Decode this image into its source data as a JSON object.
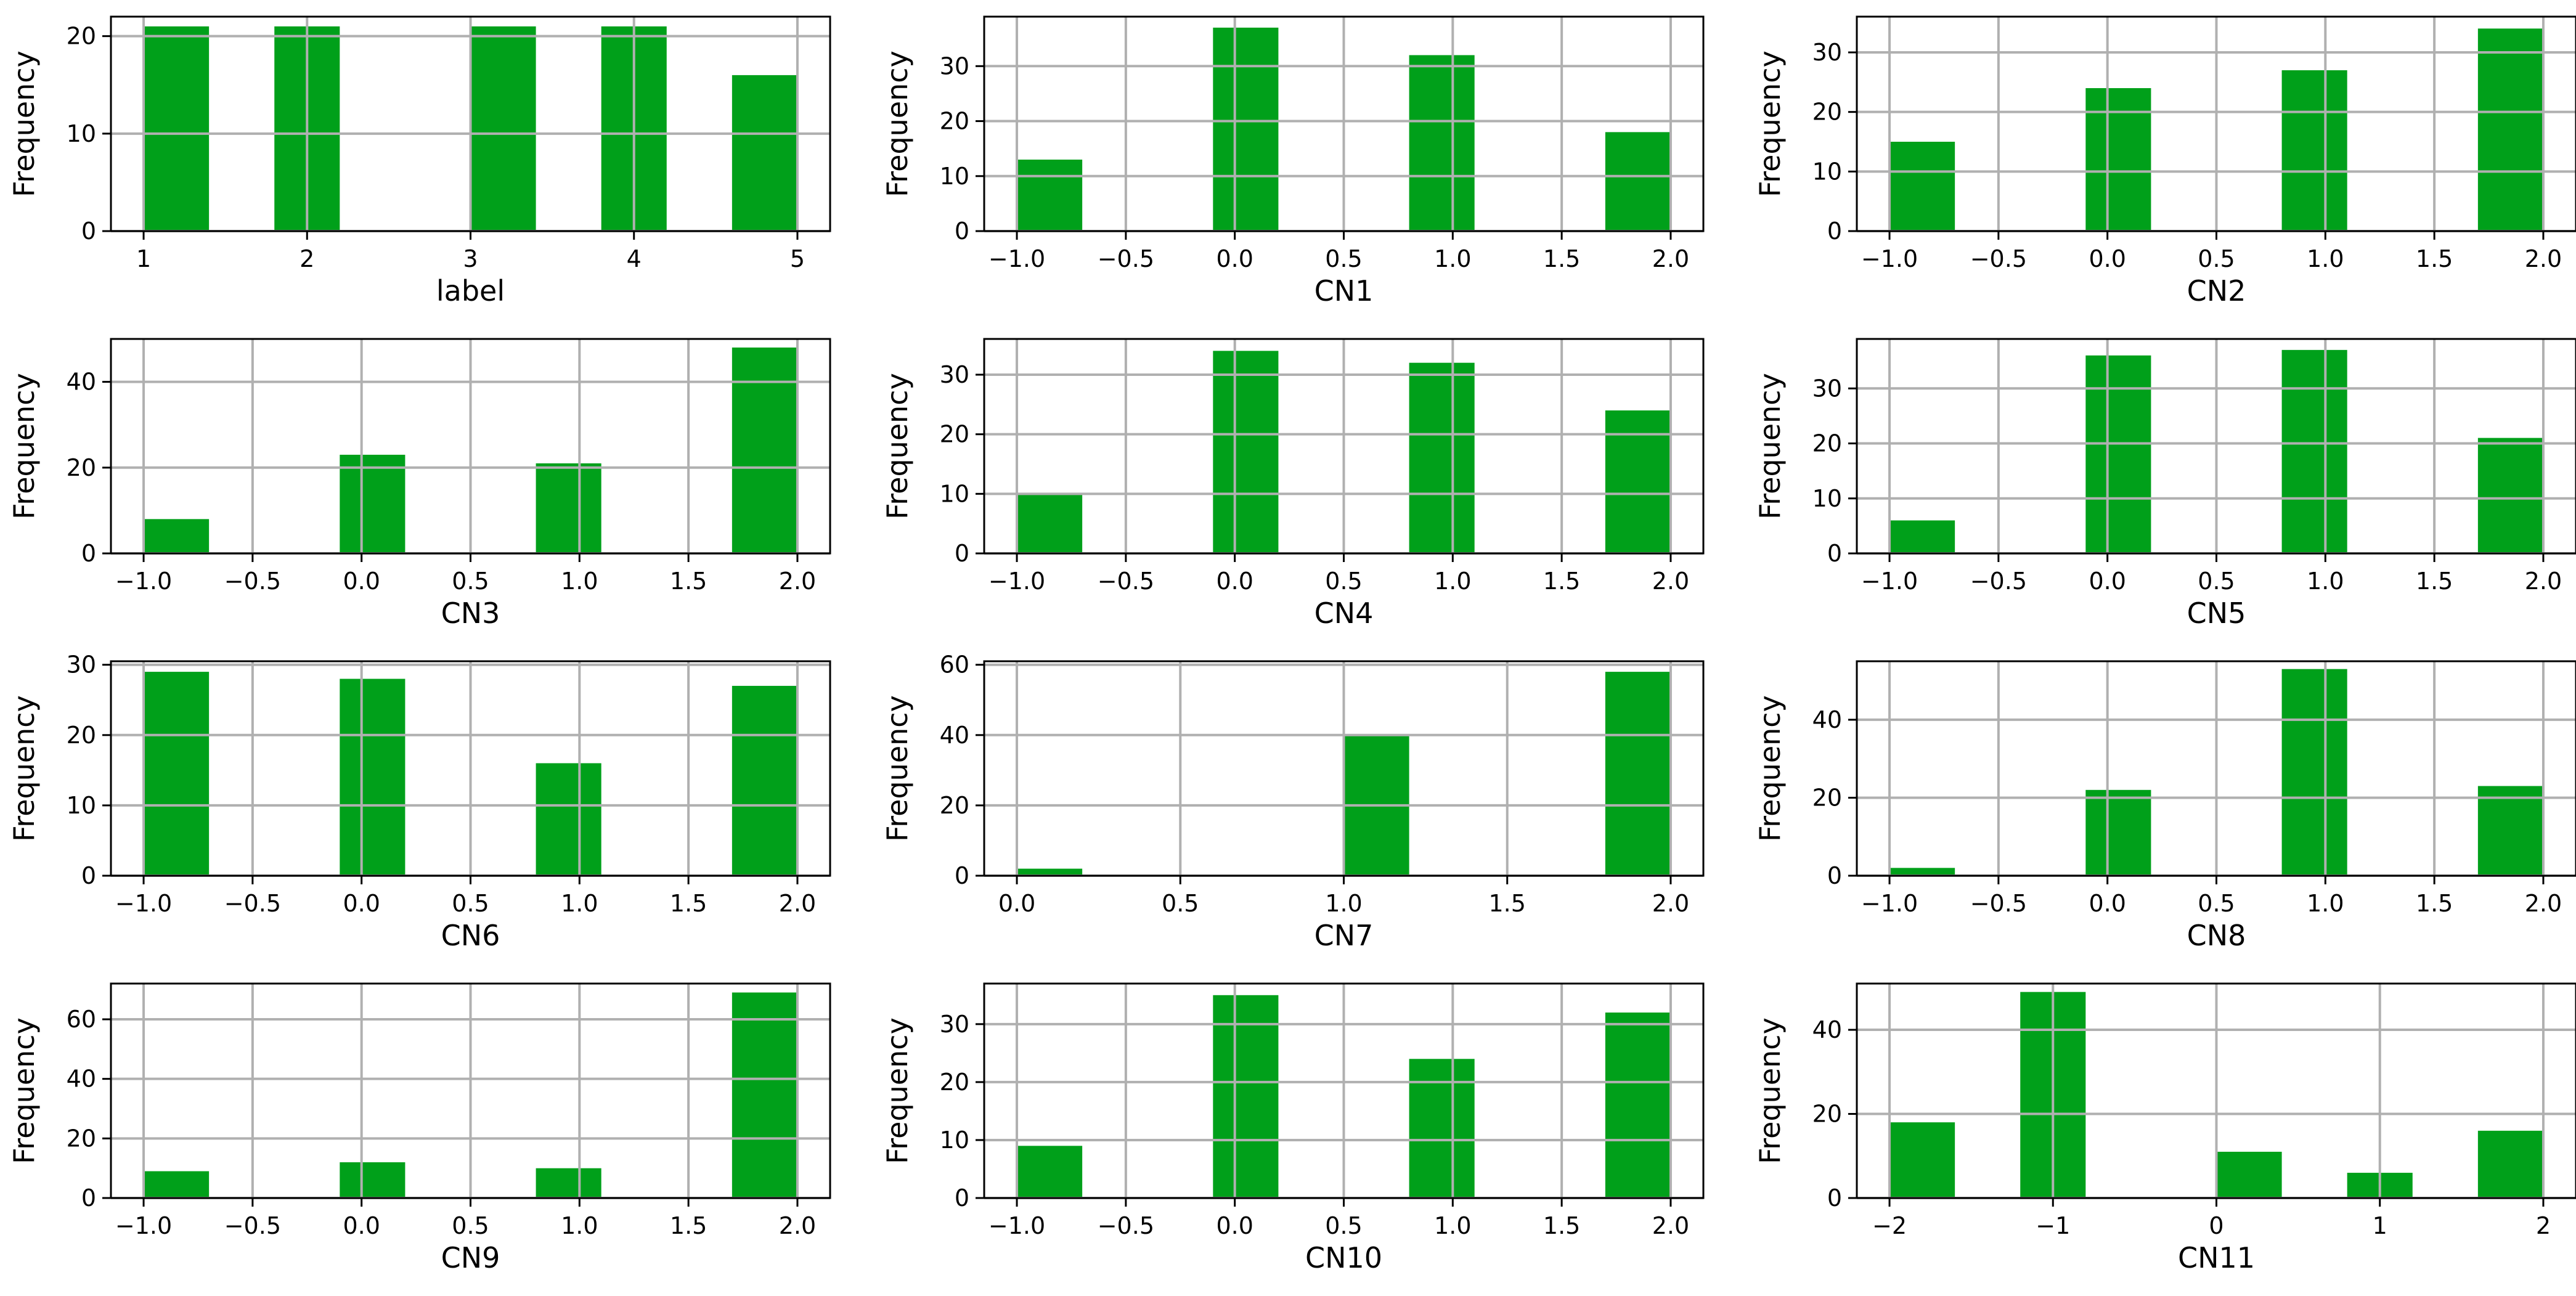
{
  "figure": {
    "background": "#ffffff",
    "bar_color": "#00a01a",
    "grid_color": "#b0b0b0"
  },
  "chart_data": [
    {
      "type": "bar",
      "title": "",
      "xlabel": "label",
      "ylabel": "Frequency",
      "xlim": [
        0.8,
        5.2
      ],
      "ylim": [
        0,
        22
      ],
      "xticks": [
        1,
        2,
        3,
        4,
        5
      ],
      "xtick_labels": [
        "1",
        "2",
        "3",
        "4",
        "5"
      ],
      "yticks": [
        0,
        10,
        20
      ],
      "ytick_labels": [
        "0",
        "10",
        "20"
      ],
      "bars": [
        {
          "x0": 1.0,
          "x1": 1.4,
          "value": 21
        },
        {
          "x0": 1.8,
          "x1": 2.2,
          "value": 21
        },
        {
          "x0": 3.0,
          "x1": 3.4,
          "value": 21
        },
        {
          "x0": 3.8,
          "x1": 4.2,
          "value": 21
        },
        {
          "x0": 4.6,
          "x1": 5.0,
          "value": 16
        }
      ]
    },
    {
      "type": "bar",
      "title": "",
      "xlabel": "CN1",
      "ylabel": "Frequency",
      "xlim": [
        -1.15,
        2.15
      ],
      "ylim": [
        0,
        39
      ],
      "xticks": [
        -1.0,
        -0.5,
        0.0,
        0.5,
        1.0,
        1.5,
        2.0
      ],
      "xtick_labels": [
        "−1.0",
        "−0.5",
        "0.0",
        "0.5",
        "1.0",
        "1.5",
        "2.0"
      ],
      "yticks": [
        0,
        10,
        20,
        30
      ],
      "ytick_labels": [
        "0",
        "10",
        "20",
        "30"
      ],
      "bars": [
        {
          "x0": -1.0,
          "x1": -0.7,
          "value": 13
        },
        {
          "x0": -0.1,
          "x1": 0.2,
          "value": 37
        },
        {
          "x0": 0.8,
          "x1": 1.1,
          "value": 32
        },
        {
          "x0": 1.7,
          "x1": 2.0,
          "value": 18
        }
      ]
    },
    {
      "type": "bar",
      "title": "",
      "xlabel": "CN2",
      "ylabel": "Frequency",
      "xlim": [
        -1.15,
        2.15
      ],
      "ylim": [
        0,
        36
      ],
      "xticks": [
        -1.0,
        -0.5,
        0.0,
        0.5,
        1.0,
        1.5,
        2.0
      ],
      "xtick_labels": [
        "−1.0",
        "−0.5",
        "0.0",
        "0.5",
        "1.0",
        "1.5",
        "2.0"
      ],
      "yticks": [
        0,
        10,
        20,
        30
      ],
      "ytick_labels": [
        "0",
        "10",
        "20",
        "30"
      ],
      "bars": [
        {
          "x0": -1.0,
          "x1": -0.7,
          "value": 15
        },
        {
          "x0": -0.1,
          "x1": 0.2,
          "value": 24
        },
        {
          "x0": 0.8,
          "x1": 1.1,
          "value": 27
        },
        {
          "x0": 1.7,
          "x1": 2.0,
          "value": 34
        }
      ]
    },
    {
      "type": "bar",
      "title": "",
      "xlabel": "CN3",
      "ylabel": "Frequency",
      "xlim": [
        -1.15,
        2.15
      ],
      "ylim": [
        0,
        50
      ],
      "xticks": [
        -1.0,
        -0.5,
        0.0,
        0.5,
        1.0,
        1.5,
        2.0
      ],
      "xtick_labels": [
        "−1.0",
        "−0.5",
        "0.0",
        "0.5",
        "1.0",
        "1.5",
        "2.0"
      ],
      "yticks": [
        0,
        20,
        40
      ],
      "ytick_labels": [
        "0",
        "20",
        "40"
      ],
      "bars": [
        {
          "x0": -1.0,
          "x1": -0.7,
          "value": 8
        },
        {
          "x0": -0.1,
          "x1": 0.2,
          "value": 23
        },
        {
          "x0": 0.8,
          "x1": 1.1,
          "value": 21
        },
        {
          "x0": 1.7,
          "x1": 2.0,
          "value": 48
        }
      ]
    },
    {
      "type": "bar",
      "title": "",
      "xlabel": "CN4",
      "ylabel": "Frequency",
      "xlim": [
        -1.15,
        2.15
      ],
      "ylim": [
        0,
        36
      ],
      "xticks": [
        -1.0,
        -0.5,
        0.0,
        0.5,
        1.0,
        1.5,
        2.0
      ],
      "xtick_labels": [
        "−1.0",
        "−0.5",
        "0.0",
        "0.5",
        "1.0",
        "1.5",
        "2.0"
      ],
      "yticks": [
        0,
        10,
        20,
        30
      ],
      "ytick_labels": [
        "0",
        "10",
        "20",
        "30"
      ],
      "bars": [
        {
          "x0": -1.0,
          "x1": -0.7,
          "value": 10
        },
        {
          "x0": -0.1,
          "x1": 0.2,
          "value": 34
        },
        {
          "x0": 0.8,
          "x1": 1.1,
          "value": 32
        },
        {
          "x0": 1.7,
          "x1": 2.0,
          "value": 24
        }
      ]
    },
    {
      "type": "bar",
      "title": "",
      "xlabel": "CN5",
      "ylabel": "Frequency",
      "xlim": [
        -1.15,
        2.15
      ],
      "ylim": [
        0,
        39
      ],
      "xticks": [
        -1.0,
        -0.5,
        0.0,
        0.5,
        1.0,
        1.5,
        2.0
      ],
      "xtick_labels": [
        "−1.0",
        "−0.5",
        "0.0",
        "0.5",
        "1.0",
        "1.5",
        "2.0"
      ],
      "yticks": [
        0,
        10,
        20,
        30
      ],
      "ytick_labels": [
        "0",
        "10",
        "20",
        "30"
      ],
      "bars": [
        {
          "x0": -1.0,
          "x1": -0.7,
          "value": 6
        },
        {
          "x0": -0.1,
          "x1": 0.2,
          "value": 36
        },
        {
          "x0": 0.8,
          "x1": 1.1,
          "value": 37
        },
        {
          "x0": 1.7,
          "x1": 2.0,
          "value": 21
        }
      ]
    },
    {
      "type": "bar",
      "title": "",
      "xlabel": "CN6",
      "ylabel": "Frequency",
      "xlim": [
        -1.15,
        2.15
      ],
      "ylim": [
        0,
        30.5
      ],
      "xticks": [
        -1.0,
        -0.5,
        0.0,
        0.5,
        1.0,
        1.5,
        2.0
      ],
      "xtick_labels": [
        "−1.0",
        "−0.5",
        "0.0",
        "0.5",
        "1.0",
        "1.5",
        "2.0"
      ],
      "yticks": [
        0,
        10,
        20,
        30
      ],
      "ytick_labels": [
        "0",
        "10",
        "20",
        "30"
      ],
      "bars": [
        {
          "x0": -1.0,
          "x1": -0.7,
          "value": 29
        },
        {
          "x0": -0.1,
          "x1": 0.2,
          "value": 28
        },
        {
          "x0": 0.8,
          "x1": 1.1,
          "value": 16
        },
        {
          "x0": 1.7,
          "x1": 2.0,
          "value": 27
        }
      ]
    },
    {
      "type": "bar",
      "title": "",
      "xlabel": "CN7",
      "ylabel": "Frequency",
      "xlim": [
        -0.1,
        2.1
      ],
      "ylim": [
        0,
        61
      ],
      "xticks": [
        0.0,
        0.5,
        1.0,
        1.5,
        2.0
      ],
      "xtick_labels": [
        "0.0",
        "0.5",
        "1.0",
        "1.5",
        "2.0"
      ],
      "yticks": [
        0,
        20,
        40,
        60
      ],
      "ytick_labels": [
        "0",
        "20",
        "40",
        "60"
      ],
      "bars": [
        {
          "x0": 0.0,
          "x1": 0.2,
          "value": 2
        },
        {
          "x0": 1.0,
          "x1": 1.2,
          "value": 40
        },
        {
          "x0": 1.8,
          "x1": 2.0,
          "value": 58
        }
      ]
    },
    {
      "type": "bar",
      "title": "",
      "xlabel": "CN8",
      "ylabel": "Frequency",
      "xlim": [
        -1.15,
        2.15
      ],
      "ylim": [
        0,
        55
      ],
      "xticks": [
        -1.0,
        -0.5,
        0.0,
        0.5,
        1.0,
        1.5,
        2.0
      ],
      "xtick_labels": [
        "−1.0",
        "−0.5",
        "0.0",
        "0.5",
        "1.0",
        "1.5",
        "2.0"
      ],
      "yticks": [
        0,
        20,
        40
      ],
      "ytick_labels": [
        "0",
        "20",
        "40"
      ],
      "bars": [
        {
          "x0": -1.0,
          "x1": -0.7,
          "value": 2
        },
        {
          "x0": -0.1,
          "x1": 0.2,
          "value": 22
        },
        {
          "x0": 0.8,
          "x1": 1.1,
          "value": 53
        },
        {
          "x0": 1.7,
          "x1": 2.0,
          "value": 23
        }
      ]
    },
    {
      "type": "bar",
      "title": "",
      "xlabel": "CN9",
      "ylabel": "Frequency",
      "xlim": [
        -1.15,
        2.15
      ],
      "ylim": [
        0,
        72
      ],
      "xticks": [
        -1.0,
        -0.5,
        0.0,
        0.5,
        1.0,
        1.5,
        2.0
      ],
      "xtick_labels": [
        "−1.0",
        "−0.5",
        "0.0",
        "0.5",
        "1.0",
        "1.5",
        "2.0"
      ],
      "yticks": [
        0,
        20,
        40,
        60
      ],
      "ytick_labels": [
        "0",
        "20",
        "40",
        "60"
      ],
      "bars": [
        {
          "x0": -1.0,
          "x1": -0.7,
          "value": 9
        },
        {
          "x0": -0.1,
          "x1": 0.2,
          "value": 12
        },
        {
          "x0": 0.8,
          "x1": 1.1,
          "value": 10
        },
        {
          "x0": 1.7,
          "x1": 2.0,
          "value": 69
        }
      ]
    },
    {
      "type": "bar",
      "title": "",
      "xlabel": "CN10",
      "ylabel": "Frequency",
      "xlim": [
        -1.15,
        2.15
      ],
      "ylim": [
        0,
        37
      ],
      "xticks": [
        -1.0,
        -0.5,
        0.0,
        0.5,
        1.0,
        1.5,
        2.0
      ],
      "xtick_labels": [
        "−1.0",
        "−0.5",
        "0.0",
        "0.5",
        "1.0",
        "1.5",
        "2.0"
      ],
      "yticks": [
        0,
        10,
        20,
        30
      ],
      "ytick_labels": [
        "0",
        "10",
        "20",
        "30"
      ],
      "bars": [
        {
          "x0": -1.0,
          "x1": -0.7,
          "value": 9
        },
        {
          "x0": -0.1,
          "x1": 0.2,
          "value": 35
        },
        {
          "x0": 0.8,
          "x1": 1.1,
          "value": 24
        },
        {
          "x0": 1.7,
          "x1": 2.0,
          "value": 32
        }
      ]
    },
    {
      "type": "bar",
      "title": "",
      "xlabel": "CN11",
      "ylabel": "Frequency",
      "xlim": [
        -2.2,
        2.2
      ],
      "ylim": [
        0,
        51
      ],
      "xticks": [
        -2,
        -1,
        0,
        1,
        2
      ],
      "xtick_labels": [
        "−2",
        "−1",
        "0",
        "1",
        "2"
      ],
      "yticks": [
        0,
        20,
        40
      ],
      "ytick_labels": [
        "0",
        "20",
        "40"
      ],
      "bars": [
        {
          "x0": -2.0,
          "x1": -1.6,
          "value": 18
        },
        {
          "x0": -1.2,
          "x1": -0.8,
          "value": 49
        },
        {
          "x0": 0.0,
          "x1": 0.4,
          "value": 11
        },
        {
          "x0": 0.8,
          "x1": 1.2,
          "value": 6
        },
        {
          "x0": 1.6,
          "x1": 2.0,
          "value": 16
        }
      ]
    }
  ]
}
